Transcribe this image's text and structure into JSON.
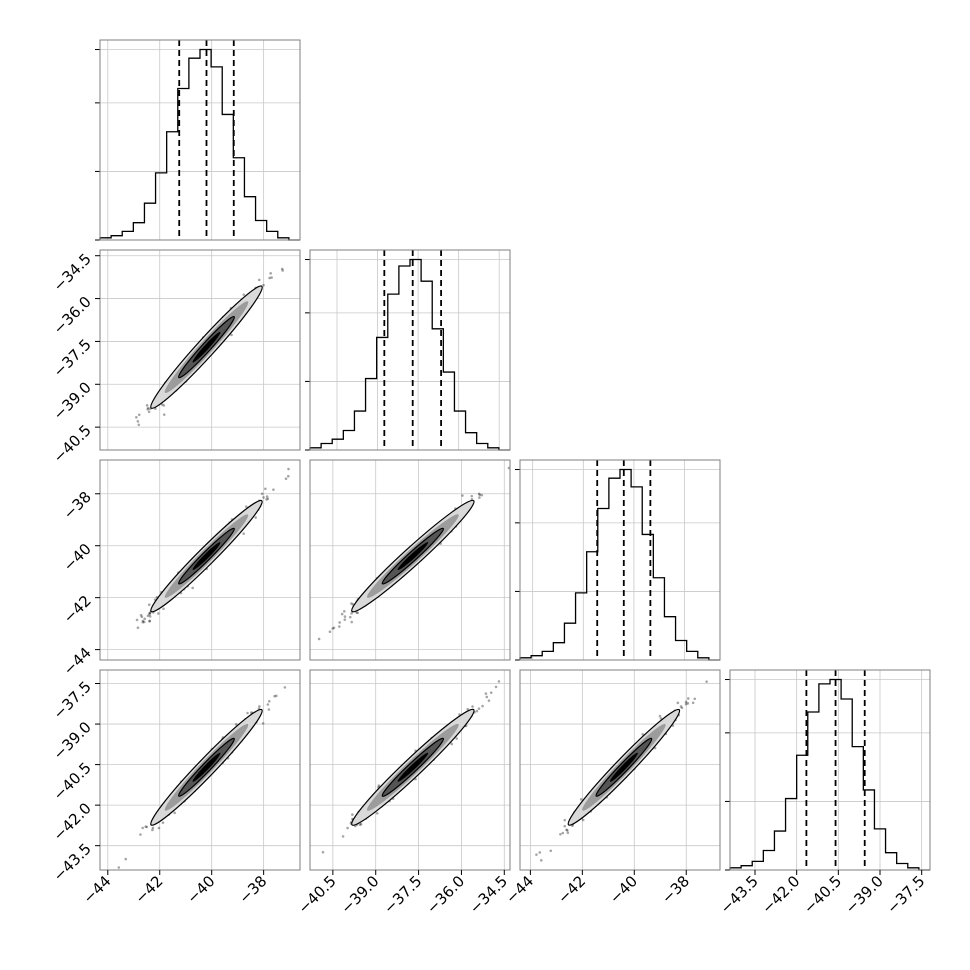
{
  "chart_data": {
    "type": "corner",
    "title": "",
    "n_params": 4,
    "params": [
      {
        "mean": -40.2,
        "sigma": 1.05,
        "hist_range": [
          -44.3,
          -36.6
        ],
        "scatter_range": [
          -44.3,
          -36.6
        ],
        "ticks": [
          -44,
          -42,
          -40,
          -38
        ],
        "tick_labels": [
          "−44",
          "−42",
          "−40",
          "−38"
        ],
        "quantiles": [
          -41.25,
          -40.2,
          -39.15
        ],
        "hist_counts": [
          1,
          2,
          4,
          8,
          17,
          31,
          50,
          70,
          84,
          88,
          80,
          58,
          38,
          20,
          9,
          4,
          1,
          0
        ]
      },
      {
        "mean": -37.7,
        "sigma": 1.05,
        "hist_range": [
          -41.5,
          -34.1
        ],
        "scatter_range": [
          -41.3,
          -34.3
        ],
        "ticks": [
          -40.5,
          -39.0,
          -37.5,
          -36.0,
          -34.5
        ],
        "tick_labels": [
          "−40.5",
          "−39.0",
          "−37.5",
          "−36.0",
          "−34.5"
        ],
        "quantiles": [
          -38.75,
          -37.7,
          -36.65
        ],
        "hist_counts": [
          1,
          3,
          5,
          9,
          18,
          33,
          52,
          72,
          85,
          88,
          78,
          56,
          36,
          18,
          8,
          3,
          1,
          0
        ]
      },
      {
        "mean": -40.4,
        "sigma": 1.05,
        "hist_range": [
          -44.5,
          -36.6
        ],
        "scatter_range": [
          -44.4,
          -36.7
        ],
        "ticks": [
          -44,
          -42,
          -40,
          -38
        ],
        "tick_labels": [
          "−44",
          "−42",
          "−40",
          "−38"
        ],
        "quantiles": [
          -41.45,
          -40.4,
          -39.35
        ],
        "hist_counts": [
          1,
          2,
          4,
          8,
          17,
          31,
          50,
          70,
          84,
          88,
          80,
          58,
          38,
          20,
          9,
          4,
          1,
          0
        ]
      },
      {
        "mean": -40.6,
        "sigma": 1.05,
        "hist_range": [
          -44.4,
          -37.2
        ],
        "scatter_range": [
          -44.4,
          -37.0
        ],
        "ticks": [
          -43.5,
          -42.0,
          -40.5,
          -39.0,
          -37.5
        ],
        "tick_labels": [
          "−43.5",
          "−42.0",
          "−40.5",
          "−39.0",
          "−37.5"
        ],
        "quantiles": [
          -41.65,
          -40.6,
          -39.55
        ],
        "hist_counts": [
          1,
          2,
          4,
          9,
          18,
          33,
          53,
          73,
          86,
          88,
          79,
          57,
          37,
          19,
          8,
          3,
          1,
          0
        ]
      }
    ],
    "correlation": 0.985,
    "grid": true,
    "quantile_levels": [
      0.16,
      0.5,
      0.84
    ]
  }
}
